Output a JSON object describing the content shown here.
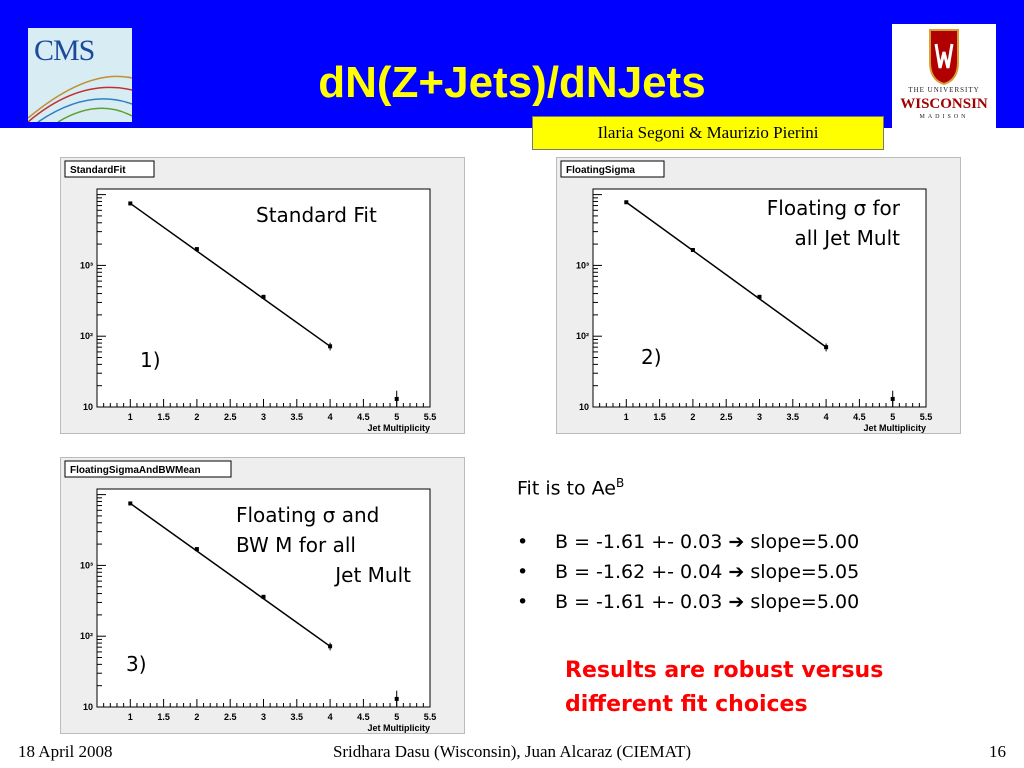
{
  "header": {
    "title": "dN(Z+Jets)/dNJets",
    "authors": "Ilaria Segoni & Maurizio Pierini",
    "left_logo_text": "CMS",
    "right_logo": {
      "line1": "THE UNIVERSITY",
      "line2": "WISCONSIN",
      "line3": "MADISON"
    }
  },
  "annotations": {
    "plot1_label": "Standard Fit",
    "plot1_number": "1)",
    "plot2_line1": "Floating σ for",
    "plot2_line2": "all Jet Mult",
    "plot2_number": "2)",
    "plot3_line1": "Floating σ and",
    "plot3_line2": "BW M for all",
    "plot3_line3": "Jet Mult",
    "plot3_number": "3)"
  },
  "fit": {
    "head": "Fit is to Ae",
    "head_sup": "B",
    "bullet_symbol": "•",
    "arrow": "➔",
    "results": [
      {
        "b": "B = -1.61 +- 0.03",
        "slope": "slope=5.00"
      },
      {
        "b": "B = -1.62 +- 0.04",
        "slope": "slope=5.05"
      },
      {
        "b": "B = -1.61 +- 0.03",
        "slope": "slope=5.00"
      }
    ],
    "conclusion": "Results are robust versus different fit choices"
  },
  "footer": {
    "date": "18 April 2008",
    "presenter": "Sridhara Dasu (Wisconsin), Juan Alcaraz (CIEMAT)",
    "page": "16"
  },
  "colors": {
    "banner": "#0000ff",
    "title": "#ffff00",
    "conclusion": "#ff0000"
  },
  "chart_data": [
    {
      "type": "scatter",
      "title": "StandardFit",
      "xlabel": "Jet Multiplicity",
      "ylabel": "",
      "xlim": [
        0.5,
        5.5
      ],
      "ylim": [
        10,
        12000
      ],
      "yscale": "log",
      "x_ticks": [
        "1",
        "1.5",
        "2",
        "2.5",
        "3",
        "3.5",
        "4",
        "4.5",
        "5",
        "5.5"
      ],
      "y_ticks": [
        "10",
        "10²",
        "10³"
      ],
      "points": [
        {
          "x": 1,
          "y": 7500,
          "err": 90
        },
        {
          "x": 2,
          "y": 1700,
          "err": 40
        },
        {
          "x": 3,
          "y": 360,
          "err": 19
        },
        {
          "x": 4,
          "y": 72,
          "err": 9
        },
        {
          "x": 5,
          "y": 13,
          "err": 4
        }
      ],
      "fit": {
        "x": [
          1,
          4
        ],
        "y": [
          7500,
          72
        ]
      }
    },
    {
      "type": "scatter",
      "title": "FloatingSigma",
      "xlabel": "Jet Multiplicity",
      "ylabel": "",
      "xlim": [
        0.5,
        5.5
      ],
      "ylim": [
        10,
        12000
      ],
      "yscale": "log",
      "x_ticks": [
        "1",
        "1.5",
        "2",
        "2.5",
        "3",
        "3.5",
        "4",
        "4.5",
        "5",
        "5.5"
      ],
      "y_ticks": [
        "10",
        "10²",
        "10³"
      ],
      "points": [
        {
          "x": 1,
          "y": 7800,
          "err": 90
        },
        {
          "x": 2,
          "y": 1650,
          "err": 40
        },
        {
          "x": 3,
          "y": 360,
          "err": 19
        },
        {
          "x": 4,
          "y": 70,
          "err": 9
        },
        {
          "x": 5,
          "y": 13,
          "err": 4
        }
      ],
      "fit": {
        "x": [
          1,
          4
        ],
        "y": [
          7800,
          70
        ]
      }
    },
    {
      "type": "scatter",
      "title": "FloatingSigmaAndBWMean",
      "xlabel": "Jet Multiplicity",
      "ylabel": "",
      "xlim": [
        0.5,
        5.5
      ],
      "ylim": [
        10,
        12000
      ],
      "yscale": "log",
      "x_ticks": [
        "1",
        "1.5",
        "2",
        "2.5",
        "3",
        "3.5",
        "4",
        "4.5",
        "5",
        "5.5"
      ],
      "y_ticks": [
        "10",
        "10²",
        "10³"
      ],
      "points": [
        {
          "x": 1,
          "y": 7500,
          "err": 90
        },
        {
          "x": 2,
          "y": 1700,
          "err": 40
        },
        {
          "x": 3,
          "y": 360,
          "err": 19
        },
        {
          "x": 4,
          "y": 72,
          "err": 9
        },
        {
          "x": 5,
          "y": 13,
          "err": 4
        }
      ],
      "fit": {
        "x": [
          1,
          4
        ],
        "y": [
          7500,
          72
        ]
      }
    }
  ]
}
